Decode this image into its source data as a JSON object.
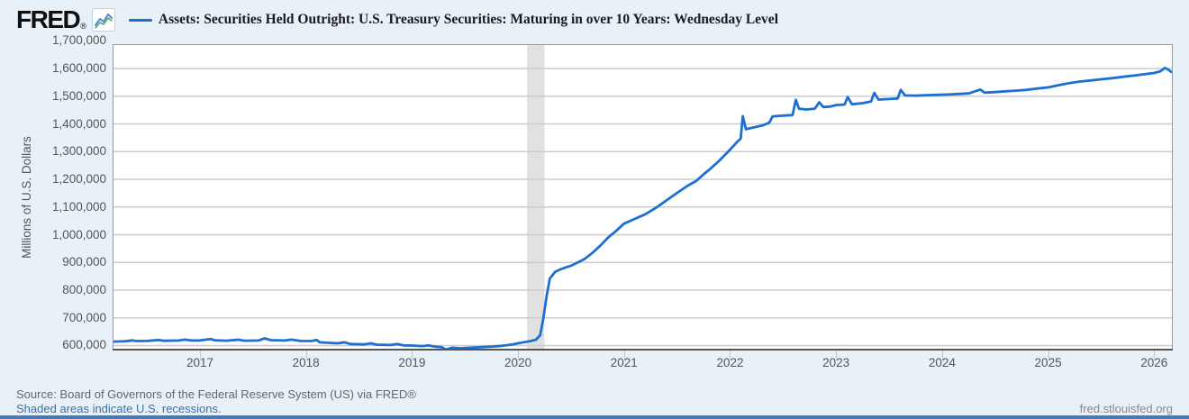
{
  "header": {
    "logo_text": "FRED",
    "logo_registered": "®",
    "logo_icon": "line-chart-icon"
  },
  "footer": {
    "source_line": "Source: Board of Governors of the Federal Reserve System (US) via FRED®",
    "recession_note": "Shaded areas indicate U.S. recessions.",
    "site_url": "fred.stlouisfed.org"
  },
  "colors": {
    "page_background": "#e8f1f8",
    "plot_background": "#ffffff",
    "series_line": "#1d6fd2",
    "gridline": "#cdcdcd",
    "plot_border": "#999999",
    "axis_bottom_border": "#555555",
    "recession_band": "#e1e1e1",
    "tick_text": "#555555",
    "link_blue": "#3a70ad",
    "bottom_bar": "#4379bd"
  },
  "chart_data": {
    "type": "line",
    "title": "Assets: Securities Held Outright: U.S. Treasury Securities: Maturing in over 10 Years: Wednesday Level",
    "xlabel": "",
    "ylabel": "Millions of U.S. Dollars",
    "grid": "horizontal",
    "legend_position": "top",
    "xlim": [
      2016.176,
      2026.176
    ],
    "ylim": [
      582000,
      1688000
    ],
    "yticks": [
      {
        "value": 600000,
        "label": "600,000"
      },
      {
        "value": 700000,
        "label": "700,000"
      },
      {
        "value": 800000,
        "label": "800,000"
      },
      {
        "value": 900000,
        "label": "900,000"
      },
      {
        "value": 1000000,
        "label": "1,000,000"
      },
      {
        "value": 1100000,
        "label": "1,100,000"
      },
      {
        "value": 1200000,
        "label": "1,200,000"
      },
      {
        "value": 1300000,
        "label": "1,300,000"
      },
      {
        "value": 1400000,
        "label": "1,400,000"
      },
      {
        "value": 1500000,
        "label": "1,500,000"
      },
      {
        "value": 1600000,
        "label": "1,600,000"
      },
      {
        "value": 1700000,
        "label": "1,700,000"
      }
    ],
    "xticks": [
      {
        "value": 2017,
        "label": "2017"
      },
      {
        "value": 2018,
        "label": "2018"
      },
      {
        "value": 2019,
        "label": "2019"
      },
      {
        "value": 2020,
        "label": "2020"
      },
      {
        "value": 2021,
        "label": "2021"
      },
      {
        "value": 2022,
        "label": "2022"
      },
      {
        "value": 2023,
        "label": "2023"
      },
      {
        "value": 2024,
        "label": "2024"
      },
      {
        "value": 2025,
        "label": "2025"
      },
      {
        "value": 2026,
        "label": "2026"
      }
    ],
    "recession_bands": [
      {
        "start": 2020.085,
        "end": 2020.25
      }
    ],
    "series": [
      {
        "name": "Assets: Securities Held Outright: U.S. Treasury Securities: Maturing in over 10 Years: Wednesday Level",
        "color": "#1d6fd2",
        "points": [
          [
            2016.18,
            614000
          ],
          [
            2016.25,
            615000
          ],
          [
            2016.3,
            615500
          ],
          [
            2016.36,
            618500
          ],
          [
            2016.4,
            616000
          ],
          [
            2016.5,
            616500
          ],
          [
            2016.61,
            620000
          ],
          [
            2016.66,
            617000
          ],
          [
            2016.8,
            618000
          ],
          [
            2016.86,
            621500
          ],
          [
            2016.92,
            618000
          ],
          [
            2017.0,
            618500
          ],
          [
            2017.1,
            623500
          ],
          [
            2017.14,
            619000
          ],
          [
            2017.25,
            617500
          ],
          [
            2017.36,
            621000
          ],
          [
            2017.42,
            617500
          ],
          [
            2017.55,
            618000
          ],
          [
            2017.61,
            626000
          ],
          [
            2017.67,
            619500
          ],
          [
            2017.8,
            618000
          ],
          [
            2017.86,
            621500
          ],
          [
            2017.95,
            616500
          ],
          [
            2018.05,
            616000
          ],
          [
            2018.1,
            620000
          ],
          [
            2018.13,
            611500
          ],
          [
            2018.2,
            610000
          ],
          [
            2018.3,
            608000
          ],
          [
            2018.36,
            611500
          ],
          [
            2018.42,
            605500
          ],
          [
            2018.55,
            604000
          ],
          [
            2018.61,
            608000
          ],
          [
            2018.67,
            603000
          ],
          [
            2018.8,
            602000
          ],
          [
            2018.86,
            605500
          ],
          [
            2018.92,
            600500
          ],
          [
            2019.0,
            600000
          ],
          [
            2019.1,
            598000
          ],
          [
            2019.15,
            601000
          ],
          [
            2019.22,
            596000
          ],
          [
            2019.28,
            594000
          ],
          [
            2019.32,
            585500
          ],
          [
            2019.38,
            592000
          ],
          [
            2019.45,
            590000
          ],
          [
            2019.55,
            592000
          ],
          [
            2019.65,
            594000
          ],
          [
            2019.75,
            596000
          ],
          [
            2019.85,
            599000
          ],
          [
            2019.95,
            604000
          ],
          [
            2020.0,
            608000
          ],
          [
            2020.06,
            612000
          ],
          [
            2020.12,
            616000
          ],
          [
            2020.17,
            621000
          ],
          [
            2020.21,
            638000
          ],
          [
            2020.24,
            700000
          ],
          [
            2020.27,
            780000
          ],
          [
            2020.3,
            842000
          ],
          [
            2020.35,
            866000
          ],
          [
            2020.4,
            875000
          ],
          [
            2020.45,
            882000
          ],
          [
            2020.5,
            888000
          ],
          [
            2020.56,
            899000
          ],
          [
            2020.63,
            913000
          ],
          [
            2020.7,
            934000
          ],
          [
            2020.78,
            962000
          ],
          [
            2020.85,
            990000
          ],
          [
            2020.92,
            1012000
          ],
          [
            2021.0,
            1040000
          ],
          [
            2021.1,
            1057000
          ],
          [
            2021.2,
            1074000
          ],
          [
            2021.3,
            1097000
          ],
          [
            2021.4,
            1124000
          ],
          [
            2021.5,
            1151000
          ],
          [
            2021.6,
            1177000
          ],
          [
            2021.68,
            1194000
          ],
          [
            2021.75,
            1218000
          ],
          [
            2021.82,
            1240000
          ],
          [
            2021.9,
            1268000
          ],
          [
            2022.0,
            1307000
          ],
          [
            2022.06,
            1332000
          ],
          [
            2022.1,
            1347000
          ],
          [
            2022.12,
            1428000
          ],
          [
            2022.15,
            1381000
          ],
          [
            2022.22,
            1387000
          ],
          [
            2022.3,
            1394000
          ],
          [
            2022.37,
            1404000
          ],
          [
            2022.4,
            1427000
          ],
          [
            2022.5,
            1430000
          ],
          [
            2022.59,
            1432000
          ],
          [
            2022.62,
            1487000
          ],
          [
            2022.65,
            1455000
          ],
          [
            2022.72,
            1452000
          ],
          [
            2022.8,
            1455000
          ],
          [
            2022.84,
            1478000
          ],
          [
            2022.88,
            1461000
          ],
          [
            2022.95,
            1463000
          ],
          [
            2023.0,
            1468000
          ],
          [
            2023.08,
            1470000
          ],
          [
            2023.11,
            1497000
          ],
          [
            2023.15,
            1471000
          ],
          [
            2023.25,
            1475000
          ],
          [
            2023.33,
            1481000
          ],
          [
            2023.36,
            1512000
          ],
          [
            2023.4,
            1488000
          ],
          [
            2023.5,
            1490000
          ],
          [
            2023.58,
            1492000
          ],
          [
            2023.61,
            1523000
          ],
          [
            2023.65,
            1503000
          ],
          [
            2023.75,
            1502000
          ],
          [
            2023.85,
            1504000
          ],
          [
            2023.95,
            1505000
          ],
          [
            2024.05,
            1506000
          ],
          [
            2024.15,
            1508000
          ],
          [
            2024.25,
            1510000
          ],
          [
            2024.36,
            1524000
          ],
          [
            2024.4,
            1513000
          ],
          [
            2024.5,
            1515000
          ],
          [
            2024.6,
            1518000
          ],
          [
            2024.7,
            1520000
          ],
          [
            2024.8,
            1523000
          ],
          [
            2024.9,
            1528000
          ],
          [
            2025.0,
            1532000
          ],
          [
            2025.1,
            1540000
          ],
          [
            2025.2,
            1547000
          ],
          [
            2025.3,
            1553000
          ],
          [
            2025.4,
            1557000
          ],
          [
            2025.5,
            1561000
          ],
          [
            2025.6,
            1565000
          ],
          [
            2025.7,
            1570000
          ],
          [
            2025.8,
            1574000
          ],
          [
            2025.9,
            1579000
          ],
          [
            2026.0,
            1584000
          ],
          [
            2026.06,
            1590000
          ],
          [
            2026.1,
            1602000
          ],
          [
            2026.13,
            1597000
          ],
          [
            2026.16,
            1588000
          ]
        ]
      }
    ]
  }
}
